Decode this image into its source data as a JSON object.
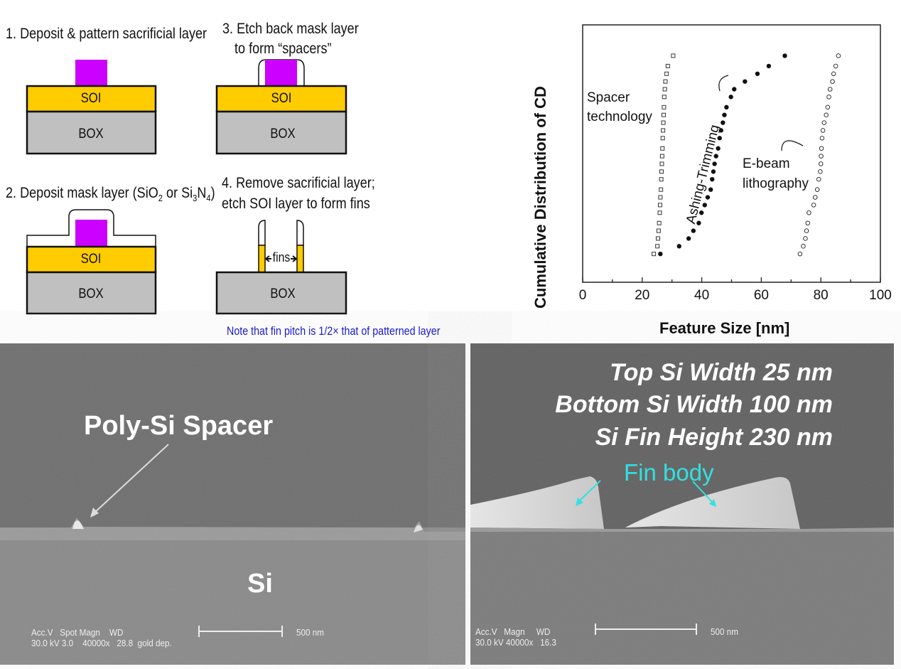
{
  "process_steps": [
    {
      "lines": [
        "1. Deposit & pattern sacrificial layer"
      ]
    },
    {
      "lines": [
        "2. Deposit mask layer (SiO",
        "2",
        " or Si",
        "3",
        "N",
        "4",
        ")"
      ]
    },
    {
      "lines": [
        "3. Etch back mask layer",
        "to form “spacers”"
      ]
    },
    {
      "lines": [
        "4. Remove sacrificial layer;",
        "etch SOI layer to form fins"
      ]
    }
  ],
  "layers": {
    "soi": "SOI",
    "box": "BOX",
    "fins": "fins"
  },
  "note": "Note that fin pitch is 1/2× that of patterned layer",
  "colors": {
    "sacrificial": "#cc00ff",
    "soi": "#ffcc00",
    "box": "#c0c0c0",
    "note": "#1a1acc",
    "fin_body_label": "#33e0e0"
  },
  "chart_data": {
    "type": "scatter",
    "xlabel": "Feature Size [nm]",
    "ylabel": "Cumulative Distribution of CD",
    "xlim": [
      0,
      100
    ],
    "ylim": [
      0,
      1
    ],
    "xticks": [
      "0",
      "20",
      "40",
      "60",
      "80",
      "100"
    ],
    "grid": false,
    "series": [
      {
        "name": "Spacer technology",
        "marker": "open-square",
        "x": [
          23.9,
          25.1,
          25.3,
          25.5,
          25.7,
          25.9,
          26.0,
          26.1,
          26.3,
          26.4,
          26.5,
          26.6,
          26.7,
          26.8,
          26.9,
          27.0,
          27.1,
          27.2,
          27.3,
          27.4,
          27.6,
          27.8,
          28.2,
          28.6,
          30.4
        ],
        "y": [
          0.11,
          0.14,
          0.17,
          0.2,
          0.23,
          0.27,
          0.3,
          0.33,
          0.36,
          0.4,
          0.43,
          0.46,
          0.49,
          0.52,
          0.56,
          0.59,
          0.62,
          0.65,
          0.68,
          0.72,
          0.75,
          0.78,
          0.81,
          0.84,
          0.88
        ]
      },
      {
        "name": "Ashing-Trimming",
        "marker": "filled-circle",
        "x": [
          26.1,
          32.4,
          35.6,
          37.2,
          39.0,
          39.9,
          41.0,
          42.0,
          43.0,
          43.5,
          43.9,
          44.3,
          44.8,
          45.5,
          46.0,
          46.5,
          47.1,
          47.6,
          48.3,
          49.8,
          50.9,
          54.5,
          58.7,
          62.5,
          67.9
        ],
        "y": [
          0.11,
          0.14,
          0.17,
          0.2,
          0.23,
          0.27,
          0.3,
          0.33,
          0.36,
          0.4,
          0.43,
          0.46,
          0.49,
          0.52,
          0.56,
          0.59,
          0.62,
          0.65,
          0.68,
          0.72,
          0.75,
          0.78,
          0.81,
          0.84,
          0.88
        ]
      },
      {
        "name": "E-beam lithography",
        "marker": "open-circle",
        "x": [
          73.0,
          74.1,
          74.8,
          75.2,
          75.6,
          76.0,
          77.6,
          78.1,
          78.8,
          79.3,
          79.8,
          80.0,
          80.1,
          80.2,
          80.4,
          80.7,
          81.1,
          81.8,
          82.3,
          82.7,
          83.1,
          83.9,
          84.3,
          85.0,
          85.9
        ],
        "y": [
          0.11,
          0.14,
          0.17,
          0.2,
          0.23,
          0.27,
          0.3,
          0.33,
          0.36,
          0.4,
          0.43,
          0.46,
          0.49,
          0.52,
          0.56,
          0.59,
          0.62,
          0.65,
          0.68,
          0.72,
          0.75,
          0.78,
          0.81,
          0.84,
          0.88
        ]
      }
    ],
    "annotations": {
      "spacer": [
        "Spacer",
        "technology"
      ],
      "ashing": "Ashing-Trimming",
      "ebeam": [
        "E-beam",
        "lithography"
      ]
    }
  },
  "sem_left": {
    "label": "Poly-Si Spacer",
    "substrate": "Si",
    "meta_line1": "Acc.V   Spot Magn    WD",
    "meta_line2": "30.0 kV 3.0    40000x   28.8  gold dep.",
    "scale": "500 nm"
  },
  "sem_right": {
    "specs": [
      "Top Si Width 25 nm",
      "Bottom Si Width 100 nm",
      "Si Fin Height 230 nm"
    ],
    "label": "Fin body",
    "meta_line1": "Acc.V   Magn     WD",
    "meta_line2": "30.0 kV 40000x   16.3",
    "scale": "500 nm"
  }
}
